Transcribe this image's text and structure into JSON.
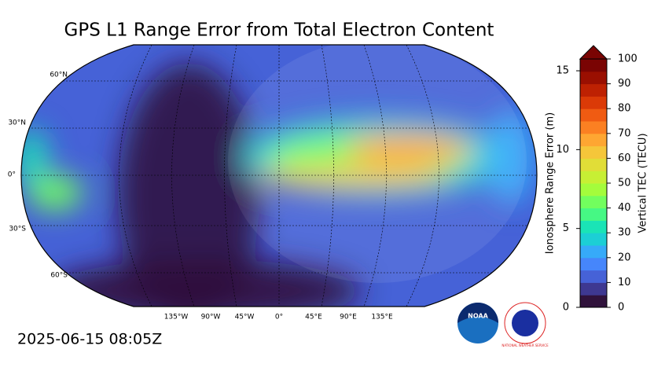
{
  "title": "GPS L1 Range Error from Total Electron Content",
  "timestamp": "2025-06-15 08:05Z",
  "map": {
    "lat_labels": [
      "60°N",
      "30°N",
      "0°",
      "30°S",
      "60°S"
    ],
    "lon_labels": [
      "135°W",
      "90°W",
      "45°W",
      "0°",
      "45°E",
      "90°E",
      "135°E"
    ]
  },
  "colorbar": {
    "left_label": "Ionosphere Range Error (m)",
    "left_lim": [
      0,
      15.75
    ],
    "left_ticks": [
      0,
      5,
      10,
      15
    ],
    "right_label": "Vertical TEC (TECU)",
    "right_lim": [
      0,
      100
    ],
    "right_ticks": [
      0,
      10,
      20,
      30,
      40,
      50,
      60,
      70,
      80,
      90,
      100
    ],
    "colors": [
      "#30123b",
      "#3e3891",
      "#4662d7",
      "#4686fb",
      "#36aaf9",
      "#1ccfd5",
      "#1ae4b6",
      "#46f884",
      "#72fe5e",
      "#a4fc3c",
      "#c7ef34",
      "#e1dd37",
      "#f5c63a",
      "#fea632",
      "#fb8022",
      "#f05b12",
      "#db3a07",
      "#be2102",
      "#9a0f01",
      "#7a0403"
    ]
  },
  "logos": {
    "noaa": "NOAA",
    "nws": "NATIONAL WEATHER SERVICE"
  }
}
